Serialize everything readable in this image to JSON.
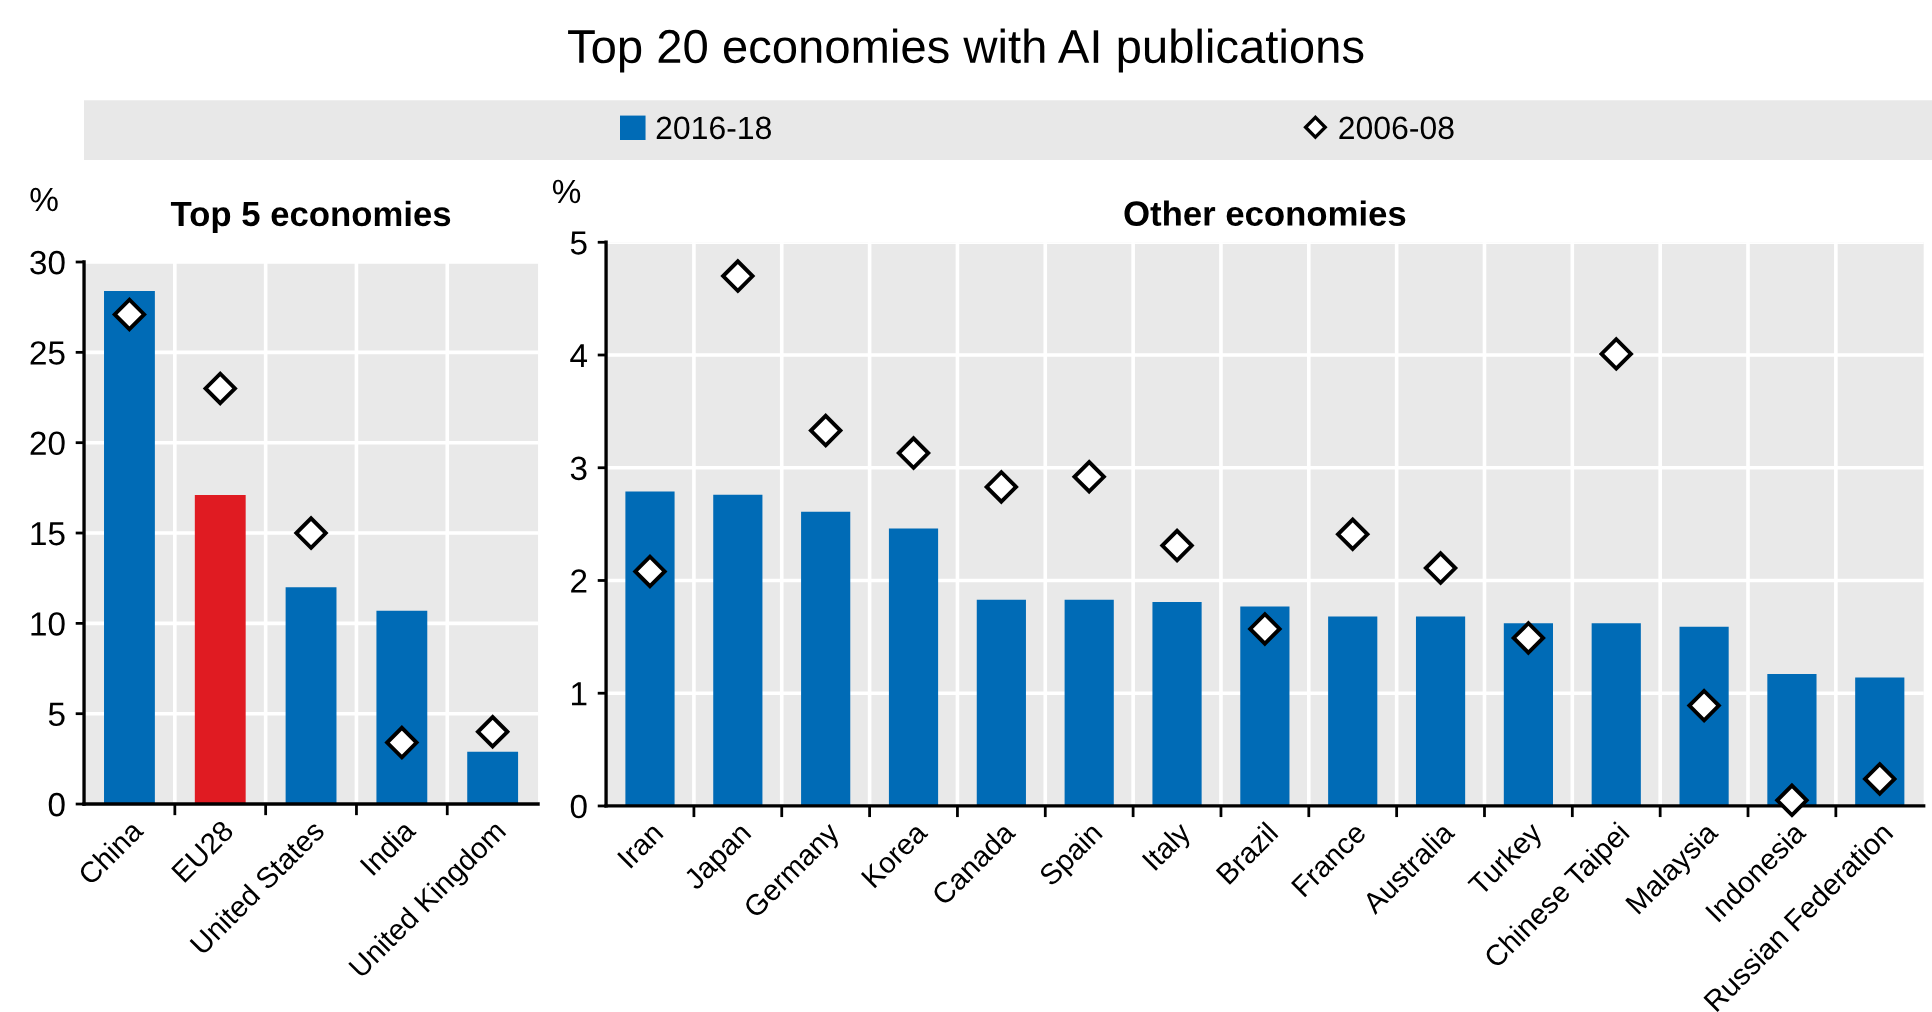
{
  "chart_data": [
    {
      "type": "bar",
      "title": "Top 5 economies",
      "ylabel": "%",
      "annotations": [
        "Top 20 economies with AI publications"
      ],
      "categories": [
        "China",
        "EU28",
        "United States",
        "India",
        "United Kingdom"
      ],
      "series": [
        {
          "name": "2016-18",
          "color": "#006bb6",
          "colors": [
            "#006bb6",
            "#e01b22",
            "#006bb6",
            "#006bb6",
            "#006bb6"
          ],
          "values": [
            28.4,
            17.1,
            12.0,
            10.7,
            2.9
          ]
        },
        {
          "name": "2006-08",
          "type": "scatter",
          "marker": "diamond",
          "color": "#ffffff",
          "x": [
            "China",
            "EU28",
            "United States",
            "India",
            "United Kingdom"
          ],
          "values": [
            27.1,
            23.0,
            15.0,
            3.4,
            4.0
          ]
        }
      ],
      "ylim": [
        0,
        30
      ],
      "yticks": [
        0,
        5,
        10,
        15,
        20,
        25,
        30
      ],
      "grid": true,
      "legend": "top"
    },
    {
      "type": "bar",
      "title": "Other economies",
      "ylabel": "%",
      "categories": [
        "Iran",
        "Japan",
        "Germany",
        "Korea",
        "Canada",
        "Spain",
        "Italy",
        "Brazil",
        "France",
        "Australia",
        "Turkey",
        "Chinese Taipei",
        "Malaysia",
        "Indonesia",
        "Russian Federation"
      ],
      "series": [
        {
          "color": "#006bb6",
          "values": [
            2.79,
            2.76,
            2.61,
            2.46,
            1.83,
            1.83,
            1.81,
            1.77,
            1.68,
            1.68,
            1.62,
            1.62,
            1.59,
            1.17,
            1.14
          ]
        },
        {
          "type": "scatter",
          "marker": "diamond",
          "color": "#ffffff",
          "x": [
            "Iran",
            "Japan",
            "Germany",
            "Korea",
            "Canada",
            "Spain",
            "Italy",
            "Brazil",
            "France",
            "Australia",
            "Turkey",
            "Chinese Taipei",
            "Malaysia",
            "Indonesia",
            "Russian Federation"
          ],
          "values": [
            2.08,
            4.7,
            3.33,
            3.13,
            2.83,
            2.92,
            2.31,
            1.57,
            2.41,
            2.11,
            1.49,
            4.01,
            0.89,
            0.05,
            0.24
          ]
        }
      ],
      "ylim": [
        0,
        5
      ],
      "yticks": [
        0,
        1,
        2,
        3,
        4,
        5
      ],
      "grid": true
    }
  ]
}
